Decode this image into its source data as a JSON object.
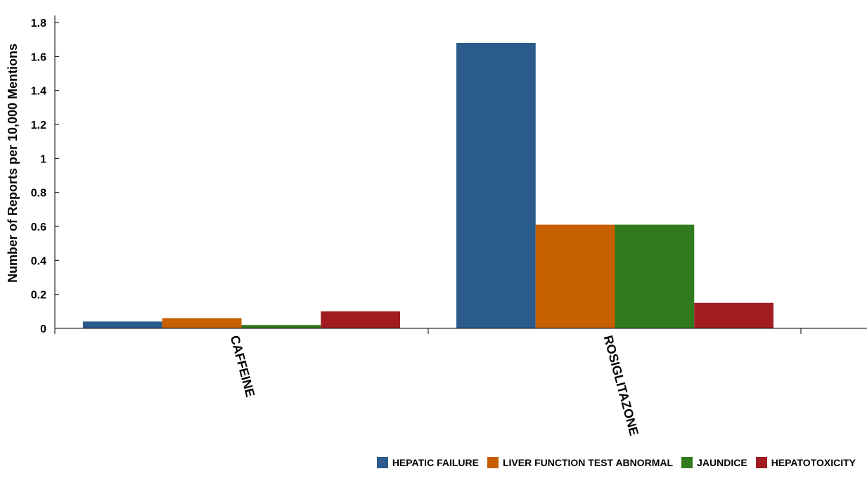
{
  "chart_data": {
    "type": "bar",
    "title": "",
    "xlabel": "",
    "ylabel": "Number of Reports per 10,000 Mentions",
    "ylim": [
      0,
      1.85
    ],
    "yticks": [
      "0",
      "0.2",
      "0.4",
      "0.6",
      "0.8",
      "1",
      "1.2",
      "1.4",
      "1.6",
      "1.8"
    ],
    "categories": [
      "CAFFEINE",
      "ROSIGLITAZONE"
    ],
    "series": [
      {
        "name": "HEPATIC FAILURE",
        "color": "#2a5b8a",
        "values": [
          0.04,
          1.68
        ]
      },
      {
        "name": "LIVER FUNCTION TEST ABNORMAL",
        "color": "#c55f00",
        "values": [
          0.06,
          0.61
        ]
      },
      {
        "name": "JAUNDICE",
        "color": "#317a1e",
        "values": [
          0.02,
          0.61
        ]
      },
      {
        "name": "HEPATOTOXICITY",
        "color": "#a01c20",
        "values": [
          0.1,
          0.15
        ]
      }
    ],
    "legend_position": "bottom-right",
    "grid": false
  }
}
